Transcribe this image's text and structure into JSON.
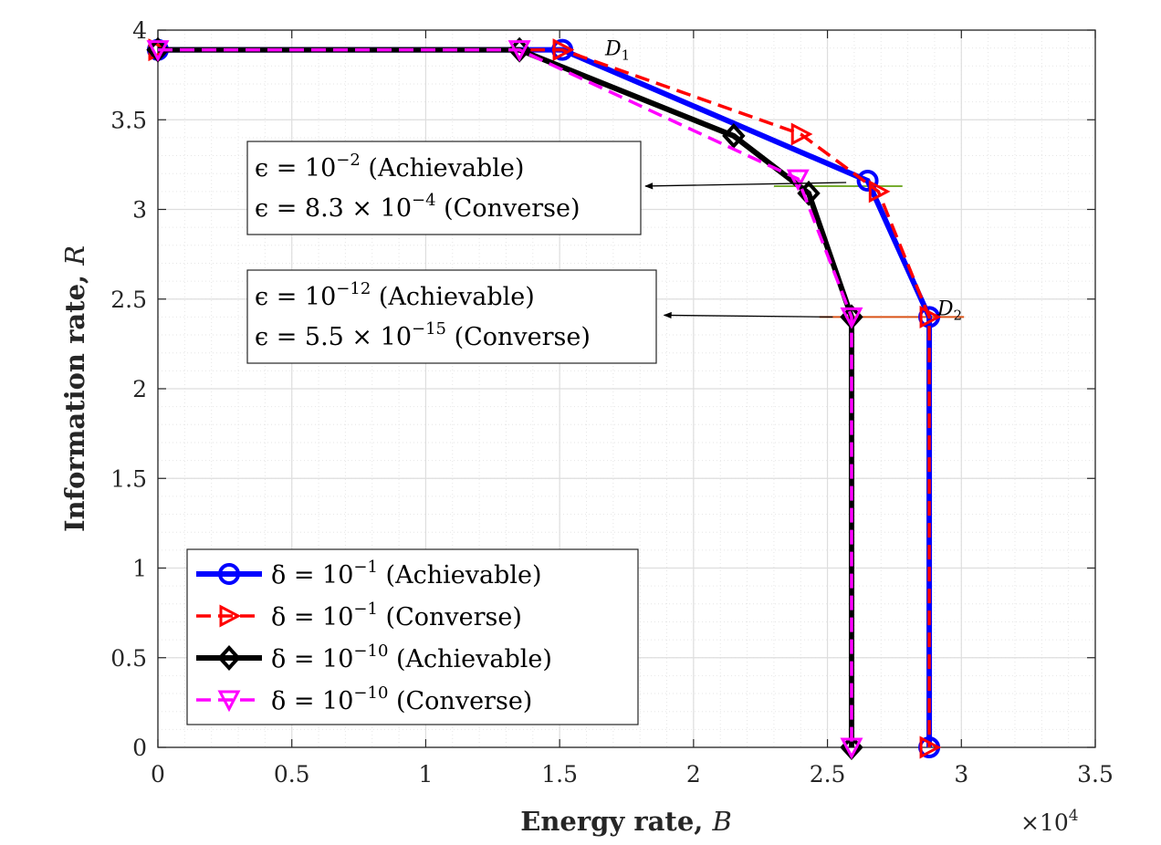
{
  "chart_data": {
    "type": "line",
    "xlabel": "Energy rate, B",
    "ylabel": "Information rate, R",
    "x_multiplier": "×10^4",
    "xlim": [
      0,
      3.5
    ],
    "ylim": [
      0,
      4
    ],
    "xticks": [
      "0",
      "0.5",
      "1",
      "1.5",
      "2",
      "2.5",
      "3",
      "3.5"
    ],
    "yticks": [
      "0",
      "0.5",
      "1",
      "1.5",
      "2",
      "2.5",
      "3",
      "3.5",
      "4"
    ],
    "grid": true,
    "legend_position": "bottom-left",
    "series": [
      {
        "name": "δ = 10^-1 (Achievable)",
        "color": "#0000ff",
        "dash": "solid",
        "marker": "circle",
        "x": [
          0,
          1.51,
          2.65,
          2.88,
          2.88
        ],
        "y": [
          3.89,
          3.89,
          3.16,
          2.4,
          0
        ]
      },
      {
        "name": "δ = 10^-1 (Converse)",
        "color": "#ff0000",
        "dash": "dashed",
        "marker": "triangle-right",
        "x": [
          0,
          1.51,
          2.4,
          2.69,
          2.88,
          2.88
        ],
        "y": [
          3.89,
          3.89,
          3.42,
          3.1,
          2.4,
          0
        ]
      },
      {
        "name": "δ = 10^-10 (Achievable)",
        "color": "#000000",
        "dash": "solid",
        "marker": "diamond",
        "x": [
          0,
          1.35,
          2.15,
          2.43,
          2.59,
          2.59
        ],
        "y": [
          3.89,
          3.89,
          3.41,
          3.09,
          2.4,
          0
        ]
      },
      {
        "name": "δ = 10^-10 (Converse)",
        "color": "#ff00ff",
        "dash": "dashed",
        "marker": "triangle-down",
        "x": [
          0,
          1.35,
          2.39,
          2.59,
          2.59
        ],
        "y": [
          3.89,
          3.89,
          3.17,
          2.4,
          0
        ]
      }
    ],
    "ref_lines": [
      {
        "color": "#77ac30",
        "x": [
          2.3,
          2.78
        ],
        "y": [
          3.13,
          3.13
        ]
      },
      {
        "color": "#d95319",
        "x": [
          2.47,
          3.01
        ],
        "y": [
          2.4,
          2.4
        ]
      }
    ],
    "point_labels": [
      {
        "label": "D",
        "sub": "1",
        "x": 1.67,
        "y": 3.89
      },
      {
        "label": "D",
        "sub": "2",
        "x": 2.91,
        "y": 2.44
      }
    ],
    "annotations": [
      {
        "line1_prefix": "ϵ = 10",
        "line1_exp": "−2",
        "line1_suffix": " (Achievable)",
        "line2_prefix": "ϵ = 8.3 × 10",
        "line2_exp": "−4",
        "line2_suffix": " (Converse)",
        "arrow_to": {
          "x": 1.82,
          "y": 3.13
        },
        "arrow_from": {
          "x": 2.57,
          "y": 3.15
        }
      },
      {
        "line1_prefix": "ϵ = 10",
        "line1_exp": "−12",
        "line1_suffix": " (Achievable)",
        "line2_prefix": "ϵ = 5.5 × 10",
        "line2_exp": "−15",
        "line2_suffix": " (Converse)",
        "arrow_to": {
          "x": 1.89,
          "y": 2.41
        },
        "arrow_from": {
          "x": 2.52,
          "y": 2.4
        }
      }
    ],
    "legend": [
      {
        "prefix": "δ = 10",
        "exp": "−1",
        "suffix": " (Achievable)"
      },
      {
        "prefix": "δ = 10",
        "exp": "−1",
        "suffix": " (Converse)"
      },
      {
        "prefix": "δ = 10",
        "exp": "−10",
        "suffix": " (Achievable)"
      },
      {
        "prefix": "δ = 10",
        "exp": "−10",
        "suffix": " (Converse)"
      }
    ]
  }
}
